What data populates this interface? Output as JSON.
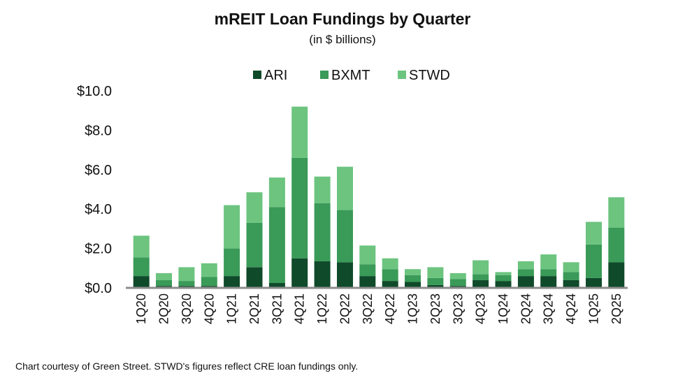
{
  "title": "mREIT Loan Fundings by Quarter",
  "subtitle": "(in $ billions)",
  "footnote": "Chart courtesy of Green Street. STWD's figures reflect CRE loan fundings only.",
  "colors": {
    "ARI": "#0f4a2a",
    "BXMT": "#3a9a58",
    "STWD": "#6cc47f",
    "axis": "#8c8c8c"
  },
  "chart_data": {
    "type": "bar",
    "stacked": true,
    "title": "mREIT Loan Fundings by Quarter",
    "subtitle": "(in $ billions)",
    "categories": [
      "1Q20",
      "2Q20",
      "3Q20",
      "4Q20",
      "1Q21",
      "2Q21",
      "3Q21",
      "4Q21",
      "1Q22",
      "2Q22",
      "3Q22",
      "4Q22",
      "1Q23",
      "2Q23",
      "3Q23",
      "4Q23",
      "1Q24",
      "2Q24",
      "3Q24",
      "4Q24",
      "1Q25",
      "2Q25"
    ],
    "series": [
      {
        "name": "ARI",
        "values": [
          0.6,
          0.1,
          0.1,
          0.1,
          0.6,
          1.05,
          0.25,
          1.5,
          1.35,
          1.3,
          0.6,
          0.35,
          0.3,
          0.15,
          0.1,
          0.4,
          0.35,
          0.6,
          0.6,
          0.4,
          0.5,
          1.3
        ]
      },
      {
        "name": "BXMT",
        "values": [
          0.95,
          0.3,
          0.25,
          0.45,
          1.4,
          2.25,
          3.85,
          5.1,
          2.95,
          2.65,
          0.6,
          0.6,
          0.35,
          0.35,
          0.35,
          0.3,
          0.3,
          0.35,
          0.35,
          0.4,
          1.7,
          1.75
        ]
      },
      {
        "name": "STWD",
        "values": [
          1.1,
          0.35,
          0.7,
          0.7,
          2.2,
          1.55,
          1.5,
          2.6,
          1.35,
          2.2,
          0.95,
          0.55,
          0.3,
          0.55,
          0.3,
          0.7,
          0.15,
          0.4,
          0.75,
          0.5,
          1.15,
          1.55
        ]
      }
    ],
    "y_tick_labels": [
      "$0.0",
      "$2.0",
      "$4.0",
      "$6.0",
      "$8.0",
      "$10.0"
    ],
    "ylim": [
      0,
      10
    ],
    "legend": {
      "position": "top-center",
      "entries": [
        "ARI",
        "BXMT",
        "STWD"
      ]
    },
    "grid": false
  }
}
